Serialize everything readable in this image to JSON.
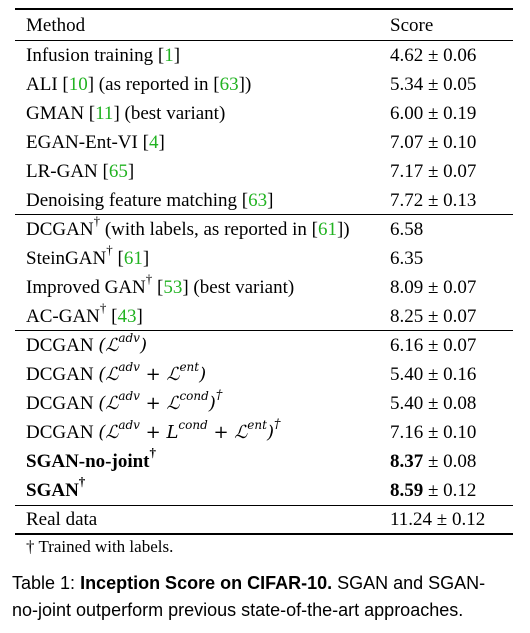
{
  "table": {
    "header": {
      "method": "Method",
      "score": "Score"
    },
    "groups": [
      {
        "rows": [
          {
            "pre": "Infusion training [",
            "cite": "1",
            "post": "]",
            "score": "4.62 ± 0.06"
          },
          {
            "pre": "ALI [",
            "cite": "10",
            "post": "] (as reported in [",
            "cite2": "63",
            "post2": "])",
            "score": "5.34 ± 0.05"
          },
          {
            "pre": "GMAN [",
            "cite": "11",
            "post": "] (best variant)",
            "score": "6.00 ± 0.19"
          },
          {
            "pre": "EGAN-Ent-VI [",
            "cite": "4",
            "post": "]",
            "score": "7.07 ± 0.10"
          },
          {
            "pre": "LR-GAN [",
            "cite": "65",
            "post": "]",
            "score": "7.17 ± 0.07"
          },
          {
            "pre": "Denoising feature matching [",
            "cite": "63",
            "post": "]",
            "score": "7.72 ± 0.13"
          }
        ]
      },
      {
        "rows": [
          {
            "pre": "DCGAN",
            "sup": "†",
            "mid": " (with labels, as reported in  [",
            "cite": "61",
            "post": "])",
            "score": "6.58"
          },
          {
            "pre": "SteinGAN",
            "sup": "†",
            "mid": " [",
            "cite": "61",
            "post": "]",
            "score": "6.35"
          },
          {
            "pre": "Improved GAN",
            "sup": "†",
            "mid": " [",
            "cite": "53",
            "post": "] (best variant)",
            "score": "8.09 ± 0.07"
          },
          {
            "pre": "AC-GAN",
            "sup": "†",
            "mid": " [",
            "cite": "43",
            "post": "]",
            "score": "8.25 ± 0.07"
          }
        ]
      },
      {
        "rows": [
          {
            "method": "DCGAN",
            "loss": "(ℒadv)",
            "score": "6.16 ± 0.07"
          },
          {
            "method": "DCGAN",
            "loss": "(ℒadv + ℒent)",
            "score": "5.40 ± 0.16"
          },
          {
            "method": "DCGAN",
            "loss": "(ℒadv + ℒcond)†",
            "score": "5.40 ± 0.08"
          },
          {
            "method": "DCGAN",
            "loss": "(ℒadv + Lcond + ℒent)†",
            "score": "7.16 ± 0.10"
          },
          {
            "method": "SGAN-no-joint†",
            "bold": true,
            "score_bold": "8.37",
            "score_rest": " ± 0.08"
          },
          {
            "method": "SGAN†",
            "bold": true,
            "score_bold": "8.59",
            "score_rest": " ± 0.12"
          }
        ]
      },
      {
        "rows": [
          {
            "method": "Real data",
            "score": "11.24 ± 0.12"
          }
        ]
      }
    ],
    "footnote": "† Trained with labels."
  },
  "caption": {
    "label": "Table 1:",
    "bold_title": "Inception Score on CIFAR-10.",
    "line1_rest": " SGAN and SGAN-",
    "line2": "no-joint outperform previous state-of-the-art approaches."
  }
}
